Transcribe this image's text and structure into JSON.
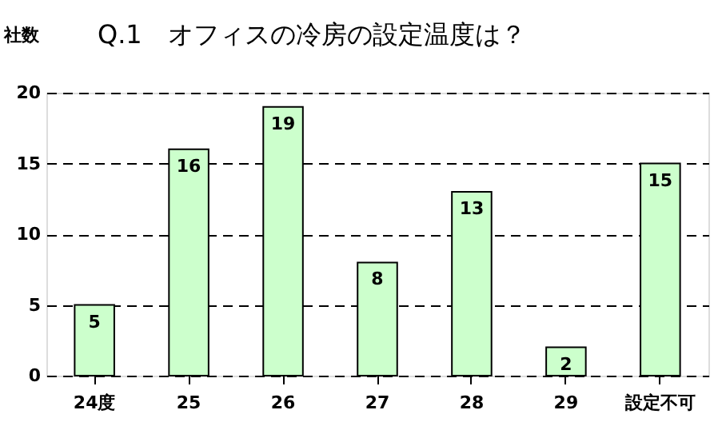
{
  "chart_data": {
    "type": "bar",
    "title": "Q.1　オフィスの冷房の設定温度は？",
    "ylabel": "社数",
    "categories": [
      "24度",
      "25",
      "26",
      "27",
      "28",
      "29",
      "設定不可"
    ],
    "values": [
      5,
      16,
      19,
      8,
      13,
      2,
      15
    ],
    "color": "#ccffcc",
    "ylim": [
      0,
      20
    ],
    "yticks": [
      0,
      5,
      10,
      15,
      20
    ],
    "grid": "y",
    "data_labels": true
  }
}
